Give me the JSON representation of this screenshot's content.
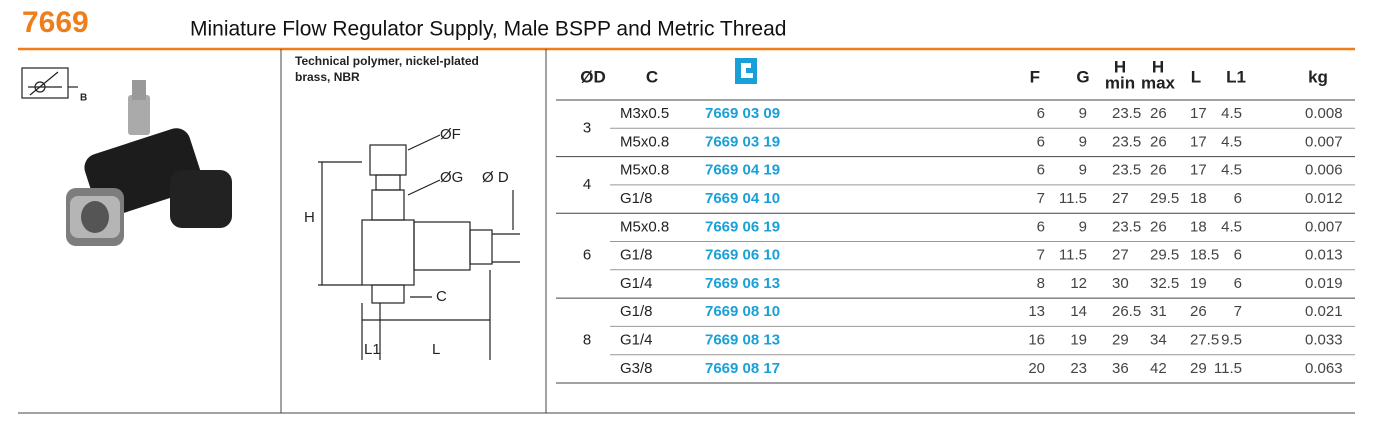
{
  "header": {
    "number": "7669",
    "title": "Miniature Flow Regulator Supply, Male BSPP and Metric Thread"
  },
  "symbol": {
    "label": "B"
  },
  "description": [
    "Technical polymer, nickel-plated",
    "brass, NBR"
  ],
  "drawing": {
    "f": "ØF",
    "g": "ØG",
    "d": "Ø D",
    "h": "H",
    "c": "C",
    "l1": "L1",
    "l": "L"
  },
  "table": {
    "columns": {
      "d": "ØD",
      "c": "C",
      "f": "F",
      "g": "G",
      "h_min": {
        "top": "H",
        "sub": "min"
      },
      "h_max": {
        "top": "H",
        "sub": "max"
      },
      "l": "L",
      "l1": "L1",
      "kg": "kg"
    },
    "groups": [
      {
        "d": "3",
        "rows": [
          [
            "M3x0.5",
            "7669 03 09",
            6,
            9,
            23.5,
            26,
            17,
            4.5,
            0.008
          ],
          [
            "M5x0.8",
            "7669 03 19",
            6,
            9,
            23.5,
            26,
            17,
            4.5,
            0.007
          ]
        ]
      },
      {
        "d": "4",
        "rows": [
          [
            "M5x0.8",
            "7669 04 19",
            6,
            9,
            23.5,
            26,
            17,
            4.5,
            0.006
          ],
          [
            "G1/8",
            "7669 04 10",
            7,
            11.5,
            27,
            29.5,
            18,
            6,
            0.012
          ]
        ]
      },
      {
        "d": "6",
        "rows": [
          [
            "M5x0.8",
            "7669 06 19",
            6,
            9,
            23.5,
            26,
            18,
            4.5,
            0.007
          ],
          [
            "G1/8",
            "7669 06 10",
            7,
            11.5,
            27,
            29.5,
            18.5,
            6,
            0.013
          ],
          [
            "G1/4",
            "7669 06 13",
            8,
            12,
            30,
            32.5,
            19,
            6,
            0.019
          ]
        ]
      },
      {
        "d": "8",
        "rows": [
          [
            "G1/8",
            "7669 08 10",
            13,
            14,
            26.5,
            31,
            26,
            7,
            0.021
          ],
          [
            "G1/4",
            "7669 08 13",
            16,
            19,
            29,
            34,
            27.5,
            9.5,
            0.033
          ],
          [
            "G3/8",
            "7669 08 17",
            20,
            23,
            36,
            42,
            29,
            11.5,
            0.063
          ]
        ]
      }
    ]
  }
}
